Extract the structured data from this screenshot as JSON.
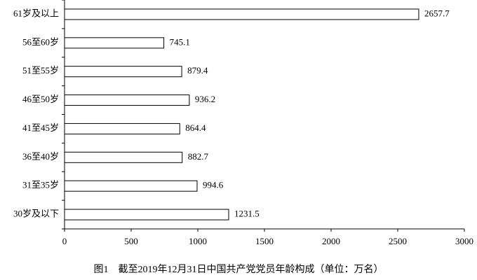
{
  "chart_data": {
    "type": "bar",
    "orientation": "horizontal",
    "caption": "图1　截至2019年12月31日中国共产党党员年龄构成（单位：万名）",
    "categories": [
      "61岁及以上",
      "56至60岁",
      "51至55岁",
      "46至50岁",
      "41至45岁",
      "36至40岁",
      "31至35岁",
      "30岁及以下"
    ],
    "values": [
      2657.7,
      745.1,
      879.4,
      936.2,
      864.4,
      882.7,
      994.6,
      1231.5
    ],
    "color": "#ffffff",
    "edge_color": "#000000",
    "xlim": [
      0,
      3000
    ],
    "xticks": [
      0,
      500,
      1000,
      1500,
      2000,
      2500,
      3000
    ],
    "grid": false
  }
}
